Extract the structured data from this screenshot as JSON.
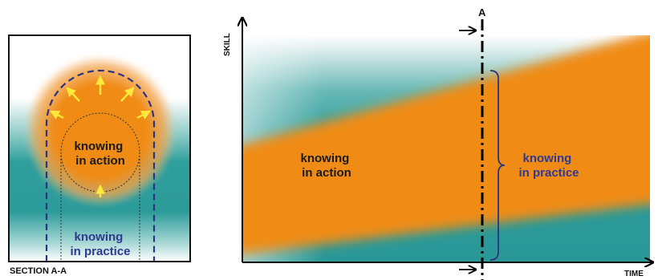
{
  "section_panel": {
    "inner_label": [
      "knowing",
      "in action"
    ],
    "outer_label": [
      "knowing",
      "in practice"
    ],
    "caption": "SECTION A-A"
  },
  "main_panel": {
    "y_axis_label": "SKILL",
    "x_axis_label": "TIME",
    "section_marker": "A",
    "inner_label": [
      "knowing",
      "in action"
    ],
    "outer_label": [
      "knowing",
      "in practice"
    ]
  },
  "colors": {
    "orange": "#ef8e1e",
    "teal": "#2b9c9b",
    "navy_label": "#2f3a8f",
    "dark_label": "#1a1a1a"
  },
  "icons": [
    "expansion-arrow-icon",
    "section-arrow-icon",
    "axis-arrow-icon",
    "curly-brace-icon"
  ]
}
